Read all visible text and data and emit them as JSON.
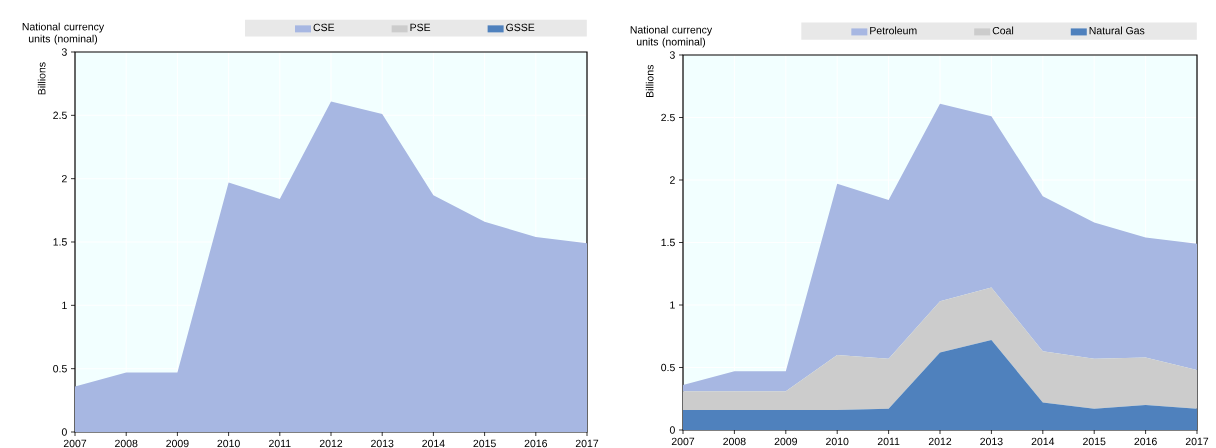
{
  "chart_data": [
    {
      "type": "area",
      "stacked": true,
      "ylabel": "Billions",
      "annotations": [
        "National currency units (nominal)"
      ],
      "legend": "top",
      "grid": true,
      "x": [
        2007,
        2008,
        2009,
        2010,
        2011,
        2012,
        2013,
        2014,
        2015,
        2016,
        2017
      ],
      "xlim": [
        2007,
        2017
      ],
      "xticks": [
        2007,
        2008,
        2009,
        2010,
        2011,
        2012,
        2013,
        2014,
        2015,
        2016,
        2017
      ],
      "ylim": [
        0,
        3
      ],
      "yticks": [
        0,
        0.5,
        1,
        1.5,
        2,
        2.5,
        3
      ],
      "series": [
        {
          "name": "GSSE",
          "color": "#4f81bd",
          "values": [
            null,
            null,
            null,
            null,
            null,
            null,
            null,
            null,
            null,
            null,
            null
          ]
        },
        {
          "name": "PSE",
          "color": "#cccccc",
          "values": [
            null,
            null,
            null,
            null,
            null,
            null,
            null,
            null,
            null,
            null,
            null
          ]
        },
        {
          "name": "CSE",
          "color": "#a7b7e2",
          "values": [
            0.36,
            0.47,
            0.47,
            1.97,
            1.84,
            2.61,
            2.51,
            1.87,
            1.66,
            1.54,
            1.49
          ]
        }
      ]
    },
    {
      "type": "area",
      "stacked": true,
      "ylabel": "Billions",
      "annotations": [
        "National currency units (nominal)"
      ],
      "legend": "top",
      "grid": true,
      "x": [
        2007,
        2008,
        2009,
        2010,
        2011,
        2012,
        2013,
        2014,
        2015,
        2016,
        2017
      ],
      "xlim": [
        2007,
        2017
      ],
      "xticks": [
        2007,
        2008,
        2009,
        2010,
        2011,
        2012,
        2013,
        2014,
        2015,
        2016,
        2017
      ],
      "ylim": [
        0,
        3
      ],
      "yticks": [
        0,
        0.5,
        1,
        1.5,
        2,
        2.5,
        3
      ],
      "series": [
        {
          "name": "Natural Gas",
          "color": "#4f81bd",
          "values": [
            0.16,
            0.16,
            0.16,
            0.16,
            0.17,
            0.62,
            0.72,
            0.22,
            0.17,
            0.2,
            0.17
          ]
        },
        {
          "name": "Coal",
          "color": "#cccccc",
          "values": [
            0.15,
            0.15,
            0.15,
            0.44,
            0.4,
            0.41,
            0.42,
            0.41,
            0.4,
            0.38,
            0.31
          ]
        },
        {
          "name": "Petroleum",
          "color": "#a7b7e2",
          "values": [
            0.05,
            0.16,
            0.16,
            1.37,
            1.27,
            1.58,
            1.37,
            1.24,
            1.09,
            0.96,
            1.01
          ]
        }
      ]
    }
  ]
}
